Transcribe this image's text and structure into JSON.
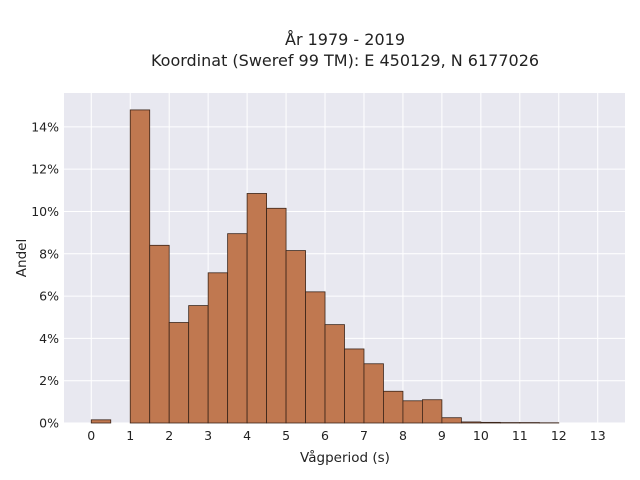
{
  "chart_data": {
    "type": "bar",
    "title_lines": [
      "År 1979 - 2019",
      "Koordinat (Sweref 99 TM): E 450129, N 6177026"
    ],
    "xlabel": "Vågperiod (s)",
    "ylabel": "Andel",
    "bin_width": 0.5,
    "bins": [
      {
        "start": 0.0,
        "value": 0.15
      },
      {
        "start": 0.5,
        "value": 0.0
      },
      {
        "start": 1.0,
        "value": 14.8
      },
      {
        "start": 1.5,
        "value": 8.4
      },
      {
        "start": 2.0,
        "value": 4.75
      },
      {
        "start": 2.5,
        "value": 5.55
      },
      {
        "start": 3.0,
        "value": 7.1
      },
      {
        "start": 3.5,
        "value": 8.95
      },
      {
        "start": 4.0,
        "value": 10.85
      },
      {
        "start": 4.5,
        "value": 10.15
      },
      {
        "start": 5.0,
        "value": 8.15
      },
      {
        "start": 5.5,
        "value": 6.2
      },
      {
        "start": 6.0,
        "value": 4.65
      },
      {
        "start": 6.5,
        "value": 3.5
      },
      {
        "start": 7.0,
        "value": 2.8
      },
      {
        "start": 7.5,
        "value": 1.5
      },
      {
        "start": 8.0,
        "value": 1.05
      },
      {
        "start": 8.5,
        "value": 1.1
      },
      {
        "start": 9.0,
        "value": 0.25
      },
      {
        "start": 9.5,
        "value": 0.05
      },
      {
        "start": 10.0,
        "value": 0.03
      },
      {
        "start": 10.5,
        "value": 0.02
      },
      {
        "start": 11.0,
        "value": 0.02
      },
      {
        "start": 11.5,
        "value": 0.01
      }
    ],
    "xlim": [
      -0.7,
      13.7
    ],
    "ylim": [
      0,
      15.6
    ],
    "x_ticks": [
      "0",
      "1",
      "2",
      "3",
      "4",
      "5",
      "6",
      "7",
      "8",
      "9",
      "10",
      "11",
      "12",
      "13"
    ],
    "y_ticks": [
      "0%",
      "2%",
      "4%",
      "6%",
      "8%",
      "10%",
      "12%",
      "14%"
    ],
    "grid": true,
    "colors": {
      "bar_fill": "#c07850",
      "bar_edge": "#3b2418",
      "plot_bg": "#e8e8f0",
      "grid": "#ffffff"
    }
  }
}
